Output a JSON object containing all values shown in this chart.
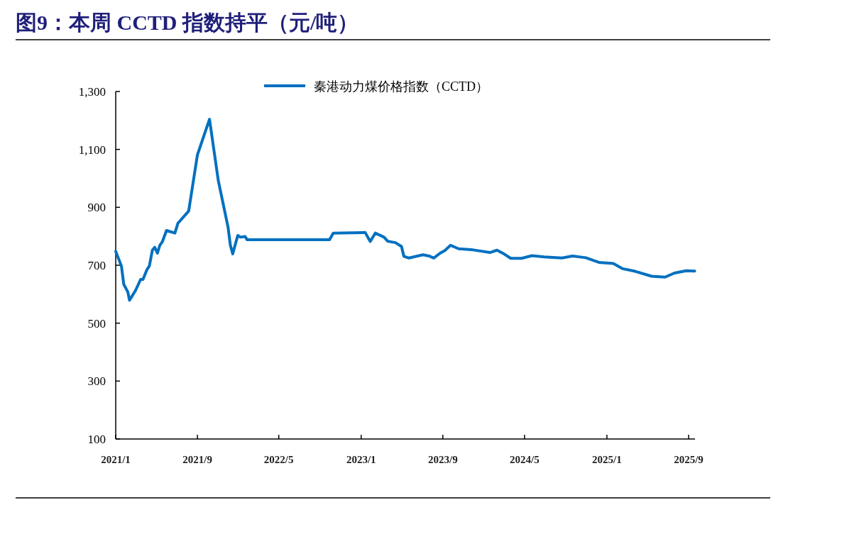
{
  "chart_data": {
    "type": "line",
    "title": "图9：本周 CCTD 指数持平（元/吨）",
    "legend": "top",
    "grid": false,
    "marker": "none",
    "line_style": "solid",
    "xlim": [
      "2021-01-01",
      "2025-09-20"
    ],
    "xticks": [
      {
        "value": "2021-01",
        "label": "2021/1"
      },
      {
        "value": "2021-09",
        "label": "2021/9"
      },
      {
        "value": "2022-05",
        "label": "2022/5"
      },
      {
        "value": "2023-01",
        "label": "2023/1"
      },
      {
        "value": "2023-09",
        "label": "2023/9"
      },
      {
        "value": "2024-05",
        "label": "2024/5"
      },
      {
        "value": "2025-01",
        "label": "2025/1"
      },
      {
        "value": "2025-09",
        "label": "2025/9"
      }
    ],
    "ylim": [
      100,
      1300
    ],
    "yticks": [
      100,
      300,
      500,
      700,
      900,
      {
        "value": 1100,
        "label": "1,100"
      },
      {
        "value": 1300,
        "label": "1,300"
      }
    ],
    "x": [
      "2021-01-01",
      "2021-01-18",
      "2021-01-25",
      "2021-02-06",
      "2021-02-11",
      "2021-03-01",
      "2021-03-16",
      "2021-03-23",
      "2021-04-04",
      "2021-04-11",
      "2021-04-20",
      "2021-04-27",
      "2021-05-05",
      "2021-05-12",
      "2021-05-20",
      "2021-06-01",
      "2021-06-26",
      "2021-07-05",
      "2021-08-06",
      "2021-09-01",
      "2021-10-07",
      "2021-11-02",
      "2021-12-01",
      "2021-12-08",
      "2021-12-15",
      "2021-12-30",
      "2022-01-07",
      "2022-01-21",
      "2022-01-27",
      "2022-09-29",
      "2022-10-10",
      "2023-01-13",
      "2023-01-28",
      "2023-02-12",
      "2023-03-10",
      "2023-03-21",
      "2023-04-13",
      "2023-05-01",
      "2023-05-08",
      "2023-05-23",
      "2023-07-04",
      "2023-07-22",
      "2023-08-05",
      "2023-08-23",
      "2023-09-07",
      "2023-09-24",
      "2023-10-18",
      "2023-11-30",
      "2024-01-19",
      "2024-02-09",
      "2024-03-01",
      "2024-03-21",
      "2024-04-22",
      "2024-05-23",
      "2024-06-28",
      "2024-08-20",
      "2024-09-21",
      "2024-10-30",
      "2024-12-08",
      "2025-01-20",
      "2025-02-17",
      "2025-03-26",
      "2025-05-14",
      "2025-06-23",
      "2025-07-21",
      "2025-08-25",
      "2025-09-19"
    ],
    "series": [
      {
        "name": "秦港动力煤价格指数（CCTD）",
        "color": "#0070c0",
        "values": [
          748,
          697,
          634,
          608,
          579,
          613,
          651,
          651,
          685,
          697,
          752,
          762,
          742,
          768,
          782,
          820,
          811,
          845,
          887,
          1081,
          1204,
          993,
          832,
          769,
          739,
          803,
          797,
          799,
          788,
          788,
          811,
          813,
          782,
          811,
          797,
          783,
          778,
          765,
          731,
          725,
          736,
          732,
          725,
          741,
          751,
          769,
          757,
          753,
          744,
          752,
          739,
          724,
          724,
          733,
          729,
          725,
          732,
          726,
          710,
          706,
          688,
          679,
          662,
          659,
          673,
          681,
          680
        ]
      }
    ]
  }
}
